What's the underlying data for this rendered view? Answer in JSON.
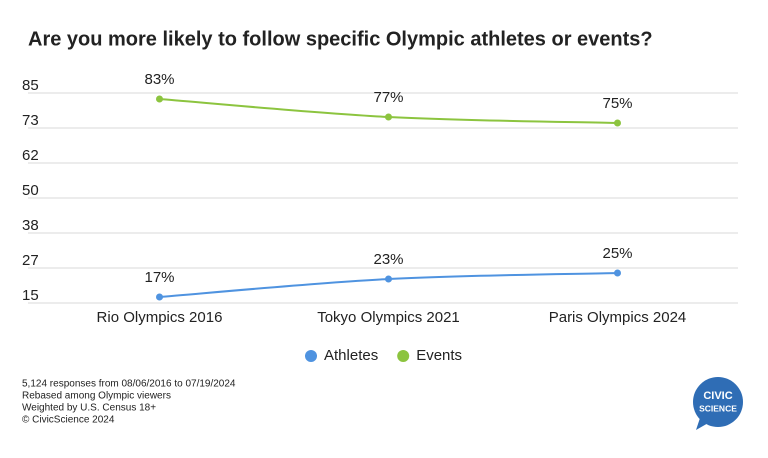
{
  "chart_data": {
    "type": "line",
    "title": "Are you more likely to follow specific Olympic athletes or events?",
    "categories": [
      "Rio Olympics 2016",
      "Tokyo Olympics 2021",
      "Paris Olympics 2024"
    ],
    "series": [
      {
        "name": "Athletes",
        "color": "#4f93e0",
        "values": [
          17,
          23,
          25
        ],
        "value_labels": [
          "17%",
          "23%",
          "25%"
        ]
      },
      {
        "name": "Events",
        "color": "#8cc43f",
        "values": [
          83,
          77,
          75
        ],
        "value_labels": [
          "83%",
          "77%",
          "75%"
        ]
      }
    ],
    "ylim": [
      15,
      85
    ],
    "yticks": [
      15,
      {
        "value": 26.67,
        "label": "27"
      },
      {
        "value": 38.33,
        "label": "38"
      },
      50,
      {
        "value": 61.67,
        "label": "62"
      },
      {
        "value": 73.33,
        "label": "73"
      },
      85
    ],
    "grid": true,
    "legend": "bottom",
    "notes": [
      "5,124 responses from 08/06/2016 to 07/19/2024",
      "Rebased among Olympic viewers",
      "Weighted by U.S. Census 18+",
      "© CivicScience 2024"
    ],
    "logo": [
      "CIVIC",
      "SCIENCE"
    ]
  }
}
